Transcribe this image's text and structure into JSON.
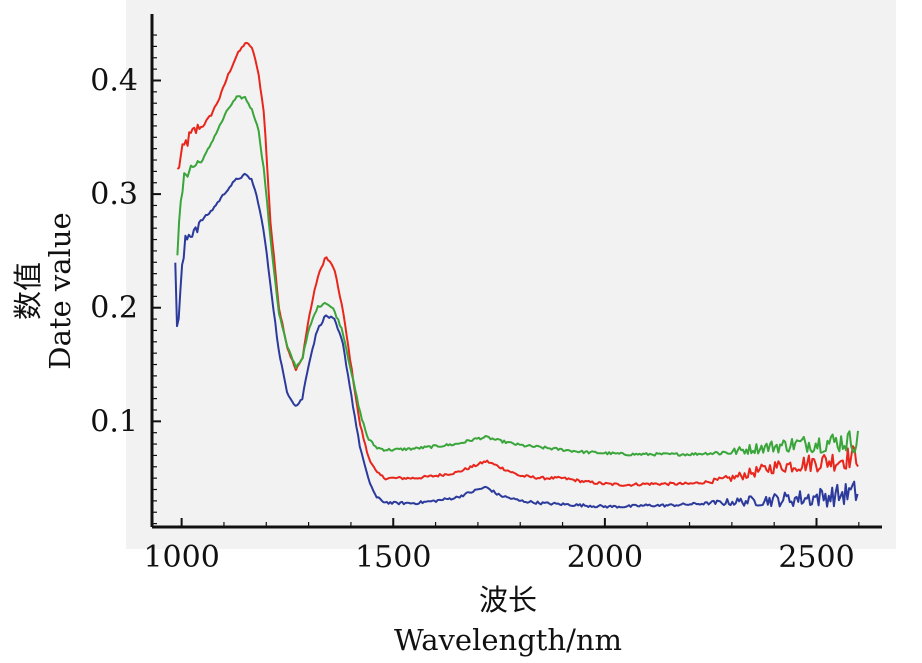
{
  "chart_data": {
    "type": "line",
    "xlabel_cn": "波长",
    "xlabel": "Wavelength/nm",
    "ylabel_cn": "数值",
    "ylabel": "Date value",
    "xlim": [
      930,
      2650
    ],
    "ylim": [
      0.007,
      0.455
    ],
    "x_ticks": [
      1000,
      1500,
      2000,
      2500
    ],
    "x_tick_labels": [
      "1000",
      "1500",
      "2000",
      "2500"
    ],
    "y_ticks": [
      0.1,
      0.2,
      0.3,
      0.4
    ],
    "y_tick_labels": [
      "0.1",
      "0.2",
      "0.3",
      "0.4"
    ],
    "grid": false,
    "background": "#f2f2f2",
    "series": [
      {
        "color": "#e8261c",
        "x": [
          990,
          1000,
          1010,
          1030,
          1050,
          1070,
          1090,
          1110,
          1130,
          1150,
          1165,
          1180,
          1195,
          1210,
          1230,
          1250,
          1270,
          1285,
          1300,
          1320,
          1340,
          1360,
          1380,
          1400,
          1420,
          1440,
          1460,
          1480,
          1500,
          1550,
          1600,
          1650,
          1700,
          1720,
          1750,
          1800,
          1850,
          1900,
          1950,
          2000,
          2050,
          2100,
          2150,
          2200,
          2250,
          2300,
          2350,
          2400,
          2450,
          2500,
          2550,
          2600
        ],
        "y": [
          0.32,
          0.335,
          0.345,
          0.355,
          0.36,
          0.37,
          0.385,
          0.405,
          0.422,
          0.433,
          0.43,
          0.41,
          0.37,
          0.275,
          0.2,
          0.165,
          0.145,
          0.155,
          0.19,
          0.225,
          0.245,
          0.235,
          0.2,
          0.15,
          0.1,
          0.07,
          0.055,
          0.05,
          0.05,
          0.05,
          0.052,
          0.055,
          0.062,
          0.065,
          0.06,
          0.052,
          0.05,
          0.05,
          0.047,
          0.045,
          0.044,
          0.045,
          0.045,
          0.045,
          0.047,
          0.05,
          0.055,
          0.06,
          0.062,
          0.064,
          0.066,
          0.07
        ]
      },
      {
        "color": "#3aa53a",
        "x": [
          990,
          1000,
          1010,
          1030,
          1050,
          1070,
          1090,
          1110,
          1130,
          1150,
          1165,
          1180,
          1195,
          1210,
          1230,
          1250,
          1270,
          1285,
          1300,
          1320,
          1340,
          1360,
          1380,
          1400,
          1420,
          1440,
          1460,
          1480,
          1500,
          1550,
          1600,
          1650,
          1700,
          1720,
          1750,
          1800,
          1850,
          1900,
          1950,
          2000,
          2050,
          2100,
          2150,
          2200,
          2250,
          2300,
          2350,
          2400,
          2450,
          2500,
          2550,
          2600
        ],
        "y": [
          0.25,
          0.3,
          0.32,
          0.325,
          0.33,
          0.345,
          0.36,
          0.375,
          0.385,
          0.385,
          0.375,
          0.36,
          0.32,
          0.26,
          0.195,
          0.165,
          0.148,
          0.155,
          0.18,
          0.2,
          0.205,
          0.198,
          0.18,
          0.145,
          0.11,
          0.085,
          0.077,
          0.075,
          0.075,
          0.076,
          0.078,
          0.08,
          0.085,
          0.086,
          0.083,
          0.079,
          0.077,
          0.075,
          0.073,
          0.072,
          0.071,
          0.071,
          0.071,
          0.071,
          0.072,
          0.073,
          0.076,
          0.078,
          0.08,
          0.081,
          0.082,
          0.083
        ]
      },
      {
        "color": "#2c3a9c",
        "x": [
          985,
          990,
          1000,
          1010,
          1030,
          1050,
          1070,
          1090,
          1110,
          1130,
          1150,
          1165,
          1180,
          1195,
          1210,
          1230,
          1250,
          1270,
          1285,
          1300,
          1320,
          1340,
          1360,
          1380,
          1400,
          1420,
          1440,
          1460,
          1480,
          1500,
          1550,
          1600,
          1650,
          1700,
          1720,
          1750,
          1800,
          1850,
          1900,
          1950,
          2000,
          2050,
          2100,
          2150,
          2200,
          2250,
          2300,
          2350,
          2400,
          2450,
          2500,
          2550,
          2600
        ],
        "y": [
          0.24,
          0.175,
          0.23,
          0.26,
          0.27,
          0.278,
          0.285,
          0.295,
          0.305,
          0.313,
          0.317,
          0.313,
          0.295,
          0.265,
          0.22,
          0.16,
          0.125,
          0.113,
          0.12,
          0.15,
          0.18,
          0.193,
          0.19,
          0.17,
          0.125,
          0.08,
          0.05,
          0.033,
          0.029,
          0.028,
          0.028,
          0.03,
          0.033,
          0.04,
          0.042,
          0.035,
          0.03,
          0.028,
          0.027,
          0.026,
          0.025,
          0.025,
          0.026,
          0.026,
          0.027,
          0.028,
          0.029,
          0.03,
          0.031,
          0.032,
          0.033,
          0.035,
          0.038
        ]
      }
    ]
  }
}
